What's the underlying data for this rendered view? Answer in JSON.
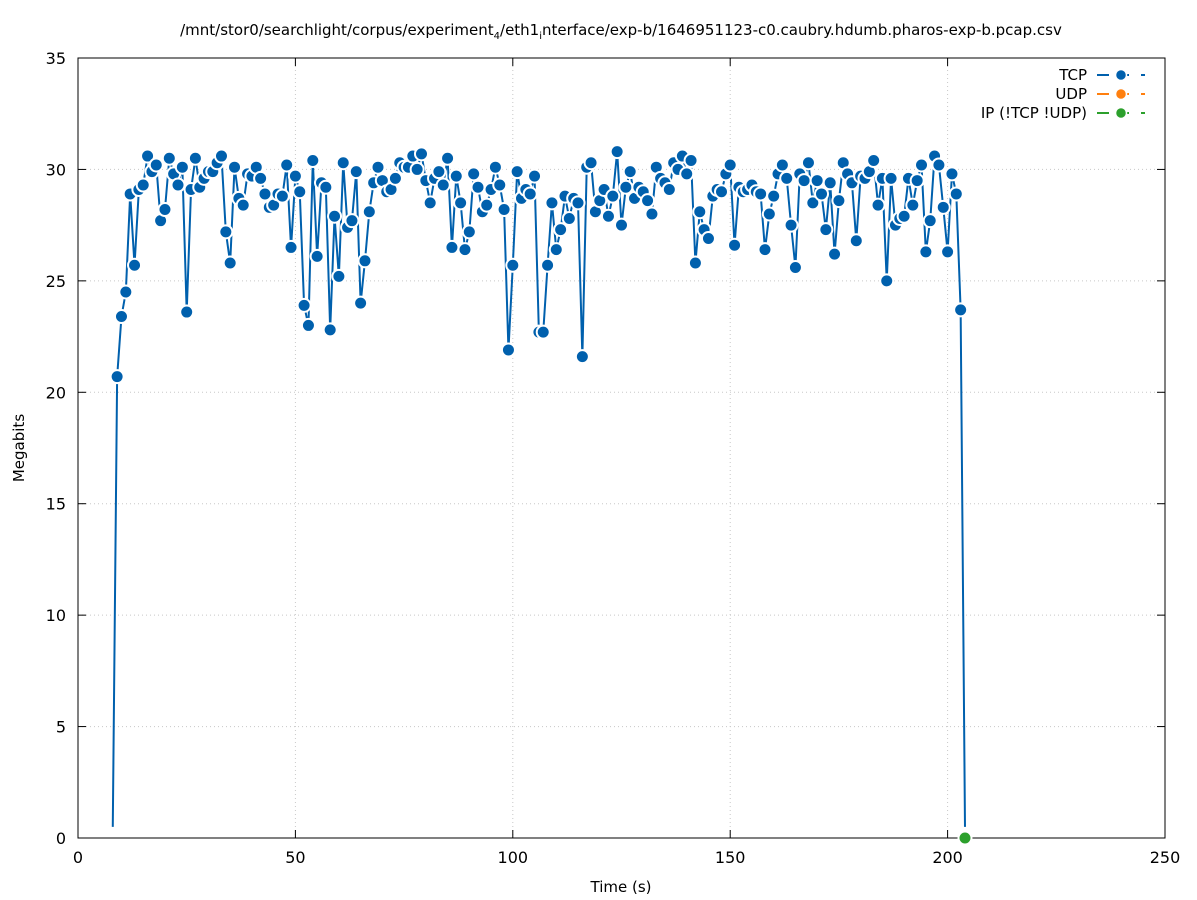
{
  "chart_data": {
    "type": "line",
    "title": "/mnt/stor0/searchlight/corpus/experiment",
    "title_sub1": "4",
    "title_mid": "/eth1",
    "title_sub2": "i",
    "title_rest": "nterface/exp-b/1646951123-c0.caubry.hdumb.pharos-exp-b.pcap.csv",
    "xlabel": "Time (s)",
    "ylabel": "Megabits",
    "xlim": [
      0,
      250
    ],
    "ylim": [
      0,
      35
    ],
    "xticks": [
      0,
      50,
      100,
      150,
      200,
      250
    ],
    "yticks": [
      0,
      5,
      10,
      15,
      20,
      25,
      30,
      35
    ],
    "grid": true,
    "legend_position": "top-right",
    "series": [
      {
        "name": "TCP",
        "color": "#0060ad",
        "x": [
          8,
          9,
          10,
          11,
          12,
          13,
          14,
          15,
          16,
          17,
          18,
          19,
          20,
          21,
          22,
          23,
          24,
          25,
          26,
          27,
          28,
          29,
          30,
          31,
          32,
          33,
          34,
          35,
          36,
          37,
          38,
          39,
          40,
          41,
          42,
          43,
          44,
          45,
          46,
          47,
          48,
          49,
          50,
          51,
          52,
          53,
          54,
          55,
          56,
          57,
          58,
          59,
          60,
          61,
          62,
          63,
          64,
          65,
          66,
          67,
          68,
          69,
          70,
          71,
          72,
          73,
          74,
          75,
          76,
          77,
          78,
          79,
          80,
          81,
          82,
          83,
          84,
          85,
          86,
          87,
          88,
          89,
          90,
          91,
          92,
          93,
          94,
          95,
          96,
          97,
          98,
          99,
          100,
          101,
          102,
          103,
          104,
          105,
          106,
          107,
          108,
          109,
          110,
          111,
          112,
          113,
          114,
          115,
          116,
          117,
          118,
          119,
          120,
          121,
          122,
          123,
          124,
          125,
          126,
          127,
          128,
          129,
          130,
          131,
          132,
          133,
          134,
          135,
          136,
          137,
          138,
          139,
          140,
          141,
          142,
          143,
          144,
          145,
          146,
          147,
          148,
          149,
          150,
          151,
          152,
          153,
          154,
          155,
          156,
          157,
          158,
          159,
          160,
          161,
          162,
          163,
          164,
          165,
          166,
          167,
          168,
          169,
          170,
          171,
          172,
          173,
          174,
          175,
          176,
          177,
          178,
          179,
          180,
          181,
          182,
          183,
          184,
          185,
          186,
          187,
          188,
          189,
          190,
          191,
          192,
          193,
          194,
          195,
          196,
          197,
          198,
          199,
          200,
          201,
          202,
          203,
          204
        ],
        "y": [
          0.5,
          20.7,
          23.4,
          24.5,
          28.9,
          25.7,
          29.1,
          29.3,
          30.6,
          29.9,
          30.2,
          27.7,
          28.2,
          30.5,
          29.8,
          29.3,
          30.1,
          23.6,
          29.1,
          30.5,
          29.2,
          29.6,
          29.9,
          29.9,
          30.3,
          30.6,
          27.2,
          25.8,
          30.1,
          28.7,
          28.4,
          29.8,
          29.7,
          30.1,
          29.6,
          28.9,
          28.3,
          28.4,
          28.9,
          28.8,
          30.2,
          26.5,
          29.7,
          29.0,
          23.9,
          23.0,
          30.4,
          26.1,
          29.4,
          29.2,
          22.8,
          27.9,
          25.2,
          30.3,
          27.4,
          27.7,
          29.9,
          24.0,
          25.9,
          28.1,
          29.4,
          30.1,
          29.5,
          29.0,
          29.1,
          29.6,
          30.3,
          30.1,
          30.1,
          30.6,
          30.0,
          30.7,
          29.5,
          28.5,
          29.6,
          29.9,
          29.3,
          30.5,
          26.5,
          29.7,
          28.5,
          26.4,
          27.2,
          29.8,
          29.2,
          28.1,
          28.4,
          29.1,
          30.1,
          29.3,
          28.2,
          21.9,
          25.7,
          29.9,
          28.7,
          29.1,
          28.9,
          29.7,
          22.7,
          22.7,
          25.7,
          28.5,
          26.4,
          27.3,
          28.8,
          27.8,
          28.7,
          28.5,
          21.6,
          30.1,
          30.3,
          28.1,
          28.6,
          29.1,
          27.9,
          28.8,
          30.8,
          27.5,
          29.2,
          29.9,
          28.7,
          29.2,
          29.0,
          28.6,
          28.0,
          30.1,
          29.6,
          29.4,
          29.1,
          30.3,
          30.0,
          30.6,
          29.8,
          30.4,
          25.8,
          28.1,
          27.3,
          26.9,
          28.8,
          29.1,
          29.0,
          29.8,
          30.2,
          26.6,
          29.2,
          29.0,
          29.1,
          29.3,
          29.0,
          28.9,
          26.4,
          28.0,
          28.8,
          29.8,
          30.2,
          29.6,
          27.5,
          25.6,
          29.8,
          29.5,
          30.3,
          28.5,
          29.5,
          28.9,
          27.3,
          29.4,
          26.2,
          28.6,
          30.3,
          29.8,
          29.4,
          26.8,
          29.7,
          29.6,
          29.9,
          30.4,
          28.4,
          29.6,
          25.0,
          29.6,
          27.5,
          27.8,
          27.9,
          29.6,
          28.4,
          29.5,
          30.2,
          26.3,
          27.7,
          30.6,
          30.2,
          28.3,
          26.3,
          29.8,
          28.9,
          23.7,
          0.5
        ]
      },
      {
        "name": "UDP",
        "color": "#ff7f0e",
        "x": [],
        "y": []
      },
      {
        "name": "IP (!TCP  !UDP)",
        "color": "#2ca02c",
        "x": [
          204
        ],
        "y": [
          0
        ]
      }
    ]
  }
}
